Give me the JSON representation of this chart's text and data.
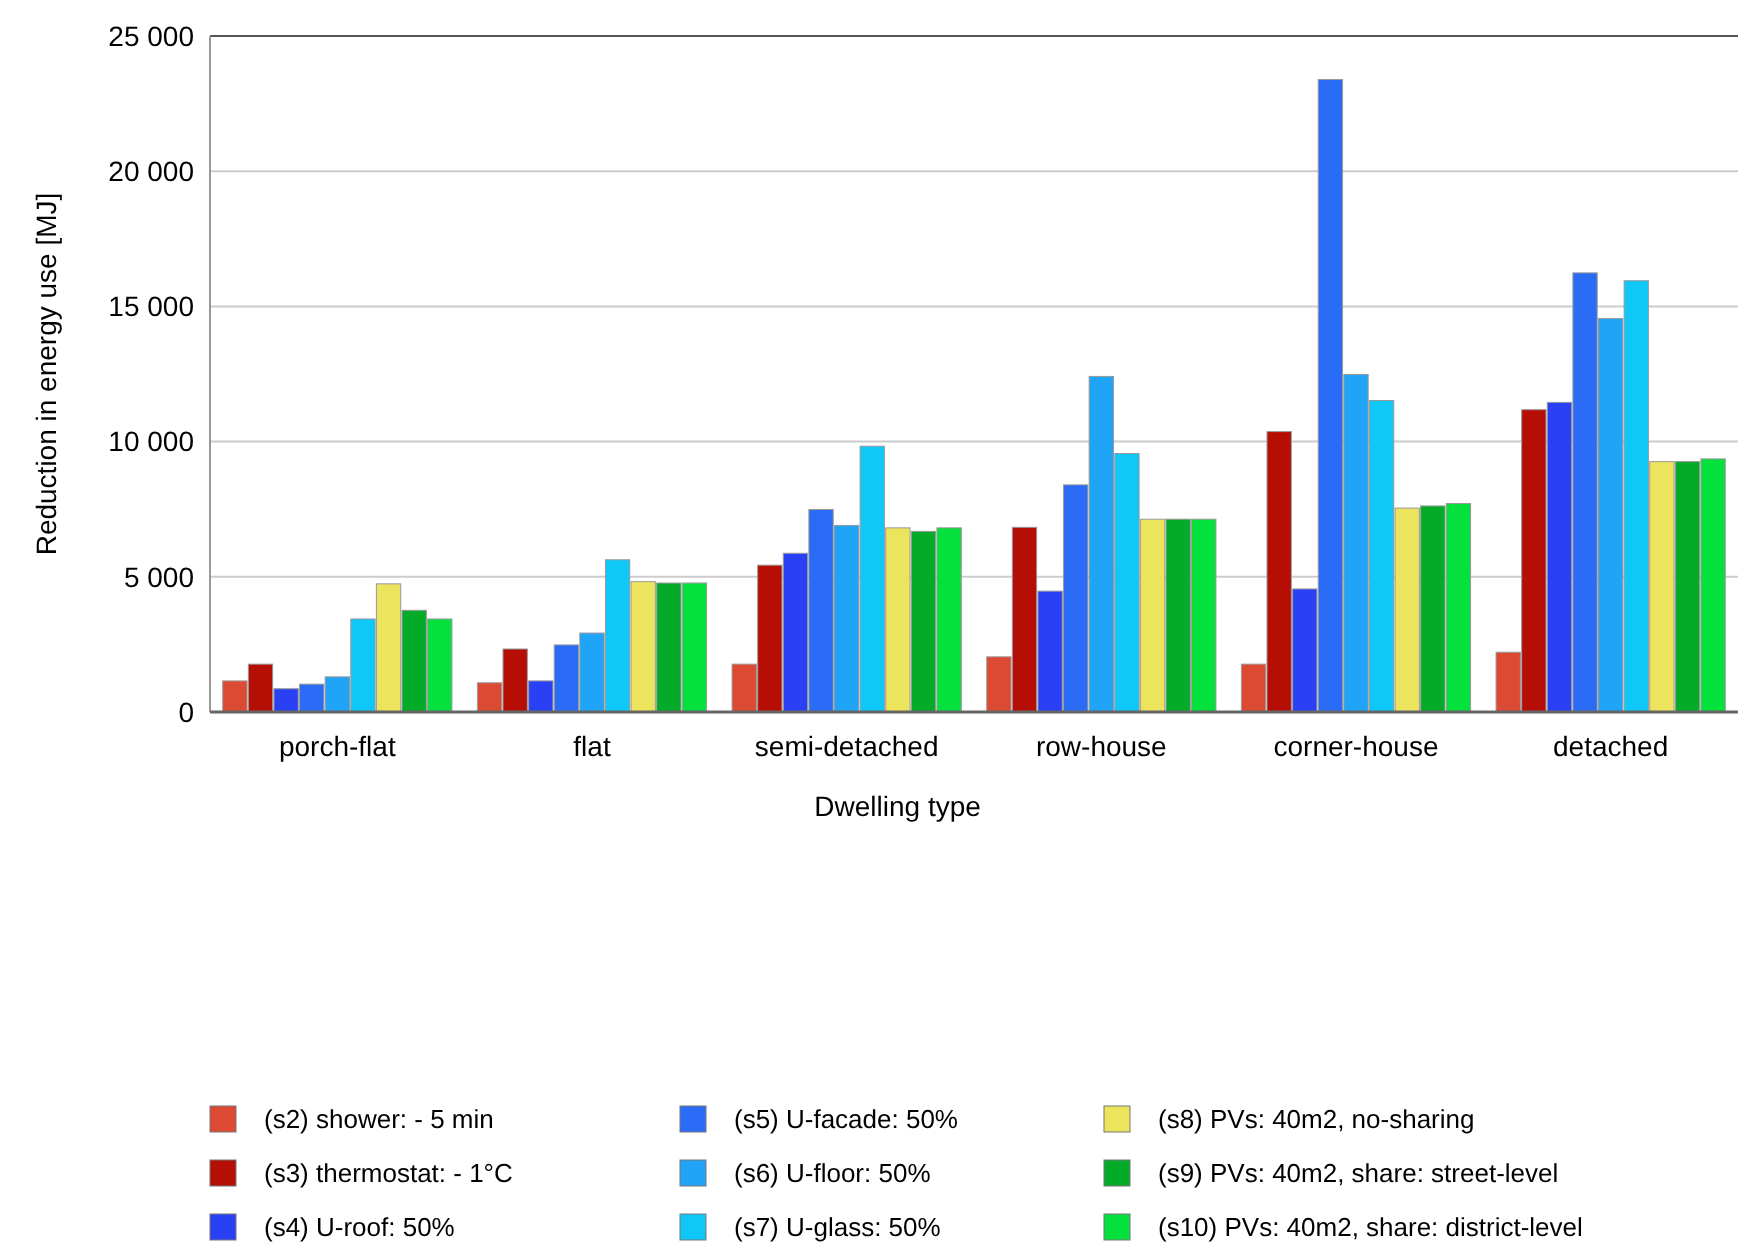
{
  "chart_data": {
    "type": "bar",
    "xlabel": "Dwelling type",
    "ylabel": "Reduction in energy use [MJ]",
    "categories": [
      "porch-flat",
      "flat",
      "semi-detached",
      "row-house",
      "corner-house",
      "detached"
    ],
    "series": [
      {
        "name": "(s2) shower: - 5 min",
        "color": "#dd4a33",
        "values": [
          1150,
          1080,
          1770,
          2040,
          1770,
          2210
        ]
      },
      {
        "name": "(s3) thermostat: - 1°C",
        "color": "#b50e05",
        "values": [
          1770,
          2330,
          5430,
          6830,
          10370,
          11180
        ]
      },
      {
        "name": "(s4) U-roof: 50%",
        "color": "#2a40f5",
        "values": [
          860,
          1150,
          5870,
          4470,
          4550,
          11450
        ]
      },
      {
        "name": "(s5) U-facade: 50%",
        "color": "#2a6cf6",
        "values": [
          1030,
          2480,
          7490,
          8400,
          23390,
          16240
        ]
      },
      {
        "name": "(s6) U-floor: 50%",
        "color": "#20a4f7",
        "values": [
          1300,
          2920,
          6900,
          12410,
          12480,
          14550
        ]
      },
      {
        "name": "(s7) U-glass: 50%",
        "color": "#10c8f8",
        "values": [
          3440,
          5630,
          9830,
          9560,
          11520,
          15950
        ]
      },
      {
        "name": "(s8) PVs: 40m2, no-sharing",
        "color": "#ece45c",
        "values": [
          4740,
          4820,
          6810,
          7130,
          7540,
          9260
        ]
      },
      {
        "name": "(s9) PVs: 40m2, share: street-level",
        "color": "#03ab28",
        "values": [
          3760,
          4770,
          6680,
          7130,
          7620,
          9260
        ]
      },
      {
        "name": "(s10) PVs: 40m2, share: district-level",
        "color": "#04e03c",
        "values": [
          3440,
          4770,
          6810,
          7130,
          7710,
          9360
        ]
      }
    ],
    "ylim": [
      0,
      25000
    ],
    "yticks": [
      0,
      {
        "value": 5000,
        "label": "5 000"
      },
      {
        "value": 10000,
        "label": "10 000"
      },
      {
        "value": 15000,
        "label": "15 000"
      },
      {
        "value": 20000,
        "label": "20 000"
      },
      {
        "value": 25000,
        "label": "25 000"
      }
    ],
    "grid": "y",
    "legend": "bottom"
  }
}
